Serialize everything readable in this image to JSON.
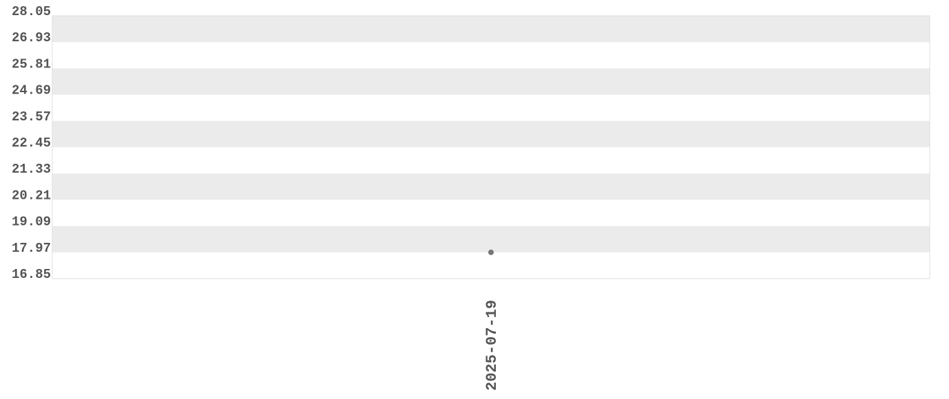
{
  "chart_data": {
    "type": "scatter",
    "title": "",
    "xlabel": "",
    "ylabel": "",
    "categories": [
      "2025-07-19"
    ],
    "values": [
      17.97
    ],
    "ylim": [
      16.85,
      28.05
    ],
    "yticks": [
      "16.85",
      "17.97",
      "19.09",
      "20.21",
      "21.33",
      "22.45",
      "23.57",
      "24.69",
      "25.81",
      "26.93",
      "28.05"
    ],
    "grid": "alternating horizontal bands",
    "colors": {
      "band": "#ebebeb",
      "point": "#777777",
      "text": "#555555",
      "border": "#dddddd"
    }
  }
}
